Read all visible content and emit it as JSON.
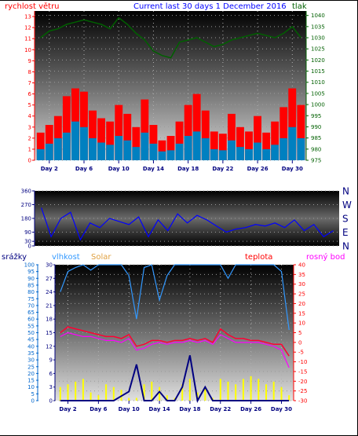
{
  "title": "Current last 30 days 1 December 2016",
  "x_labels": [
    "Day 2",
    "Day 6",
    "Day 10",
    "Day 14",
    "Day 18",
    "Day 22",
    "Day 26",
    "Day 30"
  ],
  "colors": {
    "wind": "#ff0000",
    "gust": "#ff0000",
    "wind_avg": "#0080c0",
    "pressure": "#006000",
    "direction": "#0000ff",
    "humidity": "#3399ff",
    "solar": "#ffff00",
    "temperature": "#ff0033",
    "dewpoint": "#ff00ff",
    "rain": "#000080",
    "axis_red": "#ff0000",
    "axis_green": "#006000",
    "axis_blue": "#0066cc",
    "axis_navy": "#000080"
  },
  "chart_data": [
    {
      "type": "bar",
      "name": "wind-pressure",
      "left_label": "rychlost větru",
      "right_label": "tlak",
      "left_ticks": [
        0,
        1,
        2,
        3,
        4,
        5,
        6,
        7,
        8,
        9,
        10,
        11,
        12,
        13
      ],
      "right_ticks": [
        975,
        980,
        985,
        990,
        995,
        1000,
        1005,
        1010,
        1015,
        1020,
        1025,
        1030,
        1035,
        1040
      ],
      "ylim_left": [
        0,
        13.5
      ],
      "ylim_right": [
        975,
        1042
      ],
      "days": [
        1,
        2,
        3,
        4,
        5,
        6,
        7,
        8,
        9,
        10,
        11,
        12,
        13,
        14,
        15,
        16,
        17,
        18,
        19,
        20,
        21,
        22,
        23,
        24,
        25,
        26,
        27,
        28,
        29,
        30,
        31
      ],
      "gust": [
        2.5,
        3.2,
        4.0,
        5.8,
        6.5,
        6.2,
        4.5,
        3.8,
        3.5,
        5.0,
        4.2,
        3.0,
        5.5,
        3.2,
        1.8,
        2.2,
        3.5,
        5.0,
        6.0,
        4.5,
        2.6,
        2.4,
        4.2,
        3.0,
        2.6,
        4.0,
        2.5,
        3.5,
        4.8,
        6.5,
        5.0
      ],
      "wind_avg": [
        1.0,
        1.5,
        2.0,
        2.5,
        3.5,
        3.0,
        2.0,
        1.6,
        1.4,
        2.2,
        1.8,
        1.2,
        2.5,
        1.5,
        0.8,
        0.9,
        1.5,
        2.2,
        2.6,
        2.0,
        1.0,
        0.9,
        1.8,
        1.2,
        1.0,
        1.6,
        1.0,
        1.4,
        2.0,
        3.0,
        2.0
      ],
      "pressure": [
        1030,
        1033,
        1034,
        1036,
        1037,
        1038,
        1037,
        1036,
        1034,
        1039,
        1036,
        1032,
        1029,
        1024,
        1022,
        1021,
        1028,
        1029,
        1030,
        1028,
        1026,
        1027,
        1029,
        1030,
        1031,
        1032,
        1031,
        1030,
        1032,
        1035,
        1030
      ]
    },
    {
      "type": "line",
      "name": "wind-direction",
      "left_ticks": [
        0,
        30,
        90,
        180,
        270,
        360
      ],
      "dir_labels": [
        "N",
        "W",
        "S",
        "E",
        "N"
      ],
      "ylim": [
        0,
        360
      ],
      "days": [
        1,
        2,
        3,
        4,
        5,
        6,
        7,
        8,
        9,
        10,
        11,
        12,
        13,
        14,
        15,
        16,
        17,
        18,
        19,
        20,
        21,
        22,
        23,
        24,
        25,
        26,
        27,
        28,
        29,
        30,
        31
      ],
      "direction": [
        250,
        60,
        180,
        220,
        40,
        150,
        120,
        180,
        160,
        140,
        190,
        60,
        170,
        100,
        210,
        150,
        200,
        170,
        130,
        90,
        110,
        120,
        140,
        130,
        150,
        120,
        170,
        100,
        140,
        60,
        100
      ]
    },
    {
      "type": "line",
      "name": "temp-humidity",
      "labels": {
        "rain": "srážky",
        "humidity": "vlhkost",
        "solar": "Solar",
        "temperature": "teplota",
        "dewpoint": "rosný bod"
      },
      "left_ticks": [
        0,
        5,
        10,
        15,
        20,
        25,
        30,
        35,
        40,
        45,
        50,
        55,
        60,
        65,
        70,
        75,
        80,
        85,
        90,
        95,
        100
      ],
      "inner_ticks": [
        0,
        3,
        6,
        9,
        12,
        15,
        18,
        21,
        24,
        27,
        30
      ],
      "right_ticks": [
        -30,
        -25,
        -20,
        -15,
        -10,
        -5,
        0,
        5,
        10,
        15,
        20,
        25,
        30,
        35,
        40
      ],
      "ylim_left": [
        0,
        100
      ],
      "ylim_right": [
        -30,
        40
      ],
      "days": [
        1,
        2,
        3,
        4,
        5,
        6,
        7,
        8,
        9,
        10,
        11,
        12,
        13,
        14,
        15,
        16,
        17,
        18,
        19,
        20,
        21,
        22,
        23,
        24,
        25,
        26,
        27,
        28,
        29,
        30,
        31
      ],
      "humidity": [
        80,
        95,
        98,
        100,
        96,
        100,
        100,
        100,
        100,
        92,
        60,
        98,
        100,
        74,
        92,
        100,
        100,
        100,
        100,
        100,
        100,
        100,
        90,
        100,
        100,
        100,
        100,
        100,
        100,
        95,
        52
      ],
      "temperature": [
        5,
        8,
        7,
        6,
        5,
        4,
        3,
        3,
        2,
        4,
        -2,
        -1,
        1,
        1,
        0,
        1,
        1,
        2,
        1,
        2,
        0,
        7,
        4,
        2,
        2,
        1,
        1,
        0,
        -1,
        -1,
        -7
      ],
      "dewpoint": [
        3,
        5,
        4,
        3,
        3,
        2,
        1,
        1,
        0,
        2,
        -4,
        -3,
        -1,
        0,
        -1,
        0,
        0,
        1,
        0,
        1,
        -1,
        4,
        2,
        0,
        0,
        0,
        0,
        -1,
        -2,
        -4,
        -13
      ],
      "rain": [
        0,
        0,
        0,
        0,
        0,
        0,
        0,
        0,
        1,
        2,
        8,
        0,
        0,
        2,
        0,
        0,
        3,
        10,
        0,
        3,
        0,
        0,
        0,
        0,
        0,
        0,
        0,
        0,
        0,
        0,
        0
      ],
      "solar": [
        10,
        12,
        14,
        16,
        6,
        4,
        12,
        10,
        8,
        2,
        2,
        12,
        14,
        10,
        4,
        2,
        12,
        16,
        6,
        10,
        2,
        16,
        14,
        12,
        16,
        18,
        16,
        12,
        14,
        10,
        4
      ]
    }
  ]
}
